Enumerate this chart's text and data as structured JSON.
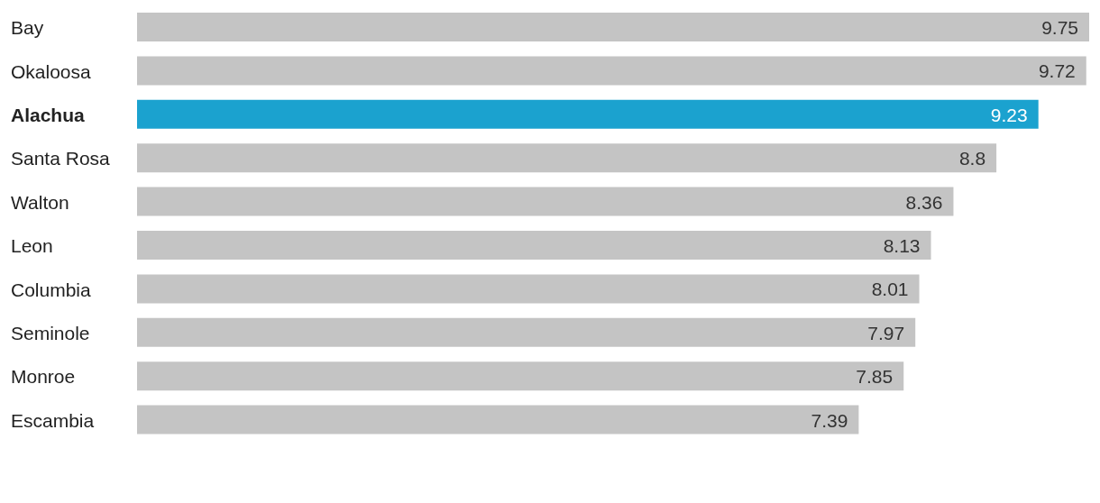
{
  "chart_data": {
    "type": "bar",
    "orientation": "horizontal",
    "categories": [
      "Bay",
      "Okaloosa",
      "Alachua",
      "Santa Rosa",
      "Walton",
      "Leon",
      "Columbia",
      "Seminole",
      "Monroe",
      "Escambia"
    ],
    "values": [
      9.75,
      9.72,
      9.23,
      8.8,
      8.36,
      8.13,
      8.01,
      7.97,
      7.85,
      7.39
    ],
    "colors": [
      "#c4c4c4",
      "#c4c4c4",
      "#1ba2cf",
      "#c4c4c4",
      "#c4c4c4",
      "#c4c4c4",
      "#c4c4c4",
      "#c4c4c4",
      "#c4c4c4",
      "#c4c4c4"
    ],
    "data_labels": true
  }
}
